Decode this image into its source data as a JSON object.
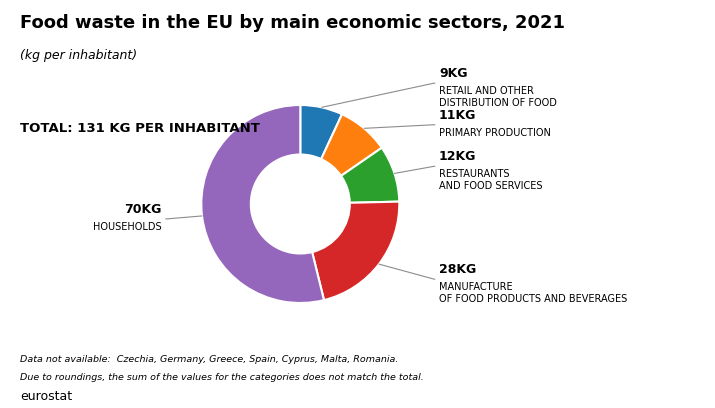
{
  "chart_data": {
    "type": "donut",
    "title": "Food waste in the EU by main economic sectors, 2021",
    "subtitle": "(kg per inhabitant)",
    "categories": [
      "RETAIL AND OTHER\nDISTRIBUTION OF FOOD",
      "PRIMARY PRODUCTION",
      "RESTAURANTS\nAND FOOD SERVICES",
      "MANUFACTURE\nOF FOOD PRODUCTS AND BEVERAGES",
      "HOUSEHOLDS"
    ],
    "values": [
      9,
      11,
      12,
      28,
      70
    ],
    "value_labels": [
      "9KG",
      "11KG",
      "12KG",
      "28KG",
      "70KG"
    ],
    "annotations": [
      "TOTAL: 131 KG PER INHABITANT",
      "Data not available:  Czechia, Germany, Greece, Spain, Cyprus, Malta, Romania.",
      "Due to roundings, the sum of the values for the categories does not match the total.",
      "eurostat"
    ]
  }
}
